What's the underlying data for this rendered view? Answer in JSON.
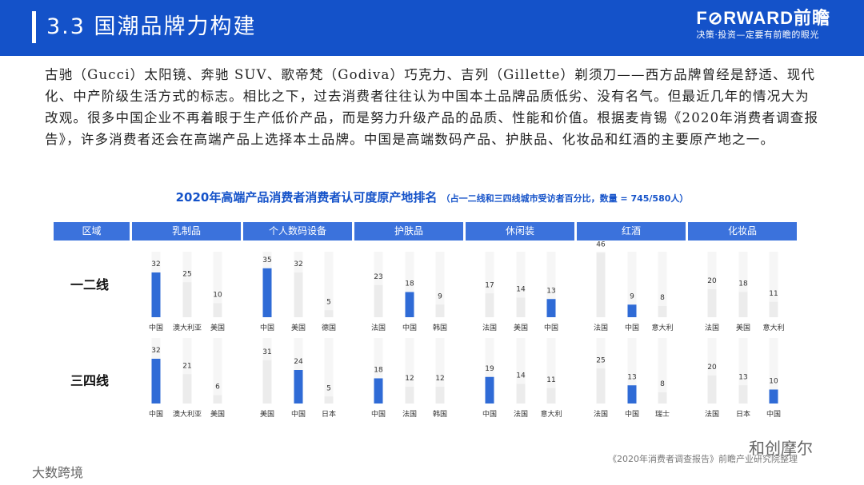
{
  "header": {
    "title": "3.3 国潮品牌力构建",
    "brand_logo": "F⊘RWARD前瞻",
    "brand_slogan": "决策·投资—定要有前瞻的眼光"
  },
  "body_text": "古驰（Gucci）太阳镜、奔驰 SUV、歌帝梵（Godiva）巧克力、吉列（Gillette）剃须刀——西方品牌曾经是舒适、现代化、中产阶级生活方式的标志。相比之下，过去消费者往往认为中国本土品牌品质低劣、没有名气。但最近几年的情况大为改观。很多中国企业不再着眼于生产低价产品，而是努力升级产品的品质、性能和价值。根据麦肯锡《2020年消费者调查报告》，许多消费者还会在高端产品上选择本土品牌。中国是高端数码产品、护肤品、化妆品和红酒的主要原产地之一。",
  "chart_data": {
    "type": "bar",
    "title": "2020年高端产品消费者消费者认可度原产地排名",
    "subtitle": "（占一二线和三四线城市受访者百分比，数量 = 745/580人）",
    "region_header": "区域",
    "colors": {
      "highlight": "#2f6bd6",
      "other": "#ececec",
      "header": "#3b72dc"
    },
    "rows": [
      "一二线",
      "三四线"
    ],
    "groups": [
      {
        "category": "乳制品",
        "tier1": [
          {
            "origin": "中国",
            "value": 32,
            "highlight": true
          },
          {
            "origin": "澳大利亚",
            "value": 25
          },
          {
            "origin": "美国",
            "value": 10
          }
        ],
        "tier2": [
          {
            "origin": "中国",
            "value": 32,
            "highlight": true
          },
          {
            "origin": "澳大利亚",
            "value": 21
          },
          {
            "origin": "美国",
            "value": 6
          }
        ]
      },
      {
        "category": "个人数码设备",
        "tier1": [
          {
            "origin": "中国",
            "value": 35,
            "highlight": true
          },
          {
            "origin": "美国",
            "value": 32
          },
          {
            "origin": "德国",
            "value": 5
          }
        ],
        "tier2": [
          {
            "origin": "美国",
            "value": 31
          },
          {
            "origin": "中国",
            "value": 24,
            "highlight": true
          },
          {
            "origin": "日本",
            "value": 5
          }
        ]
      },
      {
        "category": "护肤品",
        "tier1": [
          {
            "origin": "法国",
            "value": 23
          },
          {
            "origin": "中国",
            "value": 18,
            "highlight": true
          },
          {
            "origin": "韩国",
            "value": 9
          }
        ],
        "tier2": [
          {
            "origin": "中国",
            "value": 18,
            "highlight": true
          },
          {
            "origin": "法国",
            "value": 12
          },
          {
            "origin": "韩国",
            "value": 12
          }
        ]
      },
      {
        "category": "休闲装",
        "tier1": [
          {
            "origin": "法国",
            "value": 17
          },
          {
            "origin": "美国",
            "value": 14
          },
          {
            "origin": "中国",
            "value": 13,
            "highlight": true
          }
        ],
        "tier2": [
          {
            "origin": "中国",
            "value": 19,
            "highlight": true
          },
          {
            "origin": "法国",
            "value": 14
          },
          {
            "origin": "意大利",
            "value": 11
          }
        ]
      },
      {
        "category": "红酒",
        "tier1": [
          {
            "origin": "法国",
            "value": 46
          },
          {
            "origin": "中国",
            "value": 9,
            "highlight": true
          },
          {
            "origin": "意大利",
            "value": 8
          }
        ],
        "tier2": [
          {
            "origin": "法国",
            "value": 25
          },
          {
            "origin": "中国",
            "value": 13,
            "highlight": true
          },
          {
            "origin": "瑞士",
            "value": 8
          }
        ]
      },
      {
        "category": "化妆品",
        "tier1": [
          {
            "origin": "法国",
            "value": 20
          },
          {
            "origin": "美国",
            "value": 18
          },
          {
            "origin": "意大利",
            "value": 11
          }
        ],
        "tier2": [
          {
            "origin": "法国",
            "value": 20
          },
          {
            "origin": "日本",
            "value": 13
          },
          {
            "origin": "中国",
            "value": 10,
            "highlight": true
          }
        ]
      }
    ]
  },
  "source_note": "《2020年消费者调查报告》前瞻产业研究院整理",
  "watermarks": {
    "left": "大数跨境",
    "right": "和创摩尔"
  }
}
